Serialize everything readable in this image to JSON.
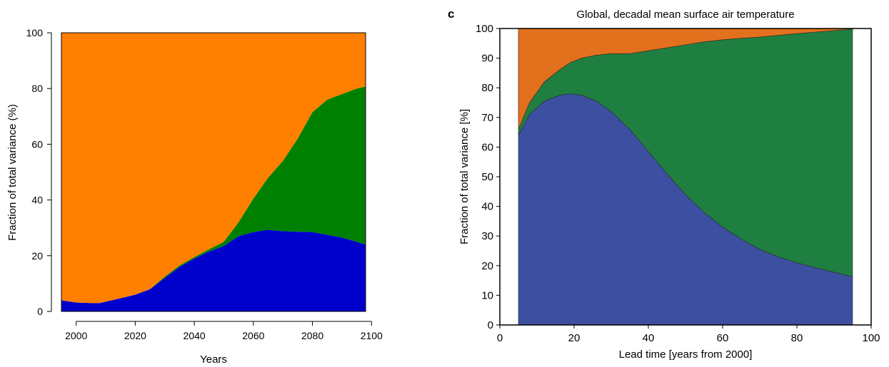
{
  "chart_data": [
    {
      "type": "area",
      "stacked": true,
      "title": "",
      "xlabel": "Years",
      "ylabel": "Fraction of total variance (%)",
      "xlim": [
        1995,
        2098
      ],
      "ylim": [
        0,
        100
      ],
      "xticks": [
        2000,
        2020,
        2040,
        2060,
        2080,
        2100
      ],
      "yticks": [
        0,
        20,
        40,
        60,
        80,
        100
      ],
      "grid": false,
      "x": [
        1995,
        2000,
        2005,
        2008,
        2012,
        2016,
        2020,
        2025,
        2030,
        2035,
        2040,
        2045,
        2050,
        2055,
        2060,
        2065,
        2070,
        2075,
        2080,
        2085,
        2090,
        2095,
        2098
      ],
      "series": [
        {
          "color": "#0000CC",
          "values": [
            4,
            3.2,
            3,
            3,
            4,
            5,
            6,
            8,
            12,
            16,
            19,
            21.5,
            23.5,
            27,
            28.5,
            29.3,
            28.8,
            28.6,
            28.5,
            27.5,
            26.5,
            25,
            24
          ]
        },
        {
          "color": "#008000",
          "values": [
            0,
            0,
            0,
            0,
            0,
            0,
            0,
            0,
            0.5,
            0.5,
            0.5,
            0.8,
            1.5,
            5,
            12,
            18.7,
            25.2,
            33.4,
            43,
            48.5,
            51.5,
            55,
            56.7
          ]
        },
        {
          "color": "#FF8000",
          "values": [
            96,
            96.8,
            97,
            97,
            96,
            95,
            94,
            92,
            87.5,
            83.5,
            80.5,
            77.7,
            75,
            68,
            59.5,
            52,
            46,
            38,
            28.5,
            24,
            22,
            20,
            19.3
          ]
        }
      ]
    },
    {
      "type": "area",
      "stacked": true,
      "panel_label": "c",
      "title": "Global, decadal mean surface air temperature",
      "xlabel": "Lead time  [years from 2000]",
      "ylabel": "Fraction of total variance  [%]",
      "xlim": [
        0,
        100
      ],
      "ylim": [
        0,
        100
      ],
      "xticks": [
        0,
        20,
        40,
        60,
        80,
        100
      ],
      "xtick_labels": [
        "0",
        "20",
        "40",
        "60",
        "80",
        "100"
      ],
      "yticks": [
        0,
        10,
        20,
        30,
        40,
        50,
        60,
        70,
        80,
        90,
        100
      ],
      "grid": false,
      "x": [
        5,
        8,
        12,
        16,
        19,
        22,
        26,
        30,
        35,
        40,
        45,
        50,
        55,
        60,
        65,
        70,
        75,
        80,
        85,
        90,
        95
      ],
      "series": [
        {
          "color": "#3D4FA0",
          "values": [
            64,
            71,
            75.5,
            77.5,
            78,
            77.5,
            75.5,
            72,
            66,
            58.5,
            51,
            44,
            38,
            33,
            29,
            25.5,
            23,
            21,
            19.3,
            17.8,
            16.3
          ]
        },
        {
          "color": "#1F7F40",
          "values": [
            2,
            4,
            6.5,
            8.5,
            10.5,
            12.5,
            15.5,
            19.5,
            25.5,
            34,
            42.5,
            50.5,
            57.5,
            63.2,
            67.7,
            71.6,
            74.7,
            77.3,
            79.5,
            81.5,
            83.5
          ]
        },
        {
          "color": "#E2701C",
          "values": [
            34,
            25,
            18,
            14,
            11.5,
            10,
            9,
            8.5,
            8.5,
            7.5,
            6.5,
            5.5,
            4.5,
            3.8,
            3.3,
            2.9,
            2.3,
            1.7,
            1.2,
            0.7,
            0.2
          ]
        }
      ]
    }
  ]
}
